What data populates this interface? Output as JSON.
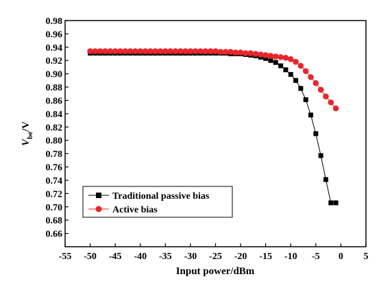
{
  "chart_data": {
    "type": "line",
    "xlabel": "Input power/dBm",
    "ylabel_main": "V",
    "ylabel_sub": "be",
    "ylabel_suffix": "/V",
    "xlim": [
      -55,
      5
    ],
    "ylim": [
      0.64,
      0.98
    ],
    "xticks": [
      -55,
      -50,
      -45,
      -40,
      -35,
      -30,
      -25,
      -20,
      -15,
      -10,
      -5,
      0,
      5
    ],
    "yticks": [
      0.66,
      0.68,
      0.7,
      0.72,
      0.74,
      0.76,
      0.78,
      0.8,
      0.82,
      0.84,
      0.86,
      0.88,
      0.9,
      0.92,
      0.94,
      0.96,
      0.98
    ],
    "legend_position": "bottom-left",
    "grid": false,
    "series": [
      {
        "name": "Traditional passive bias",
        "color": "#000000",
        "marker": "square",
        "x": [
          -50,
          -49,
          -48,
          -47,
          -46,
          -45,
          -44,
          -43,
          -42,
          -41,
          -40,
          -39,
          -38,
          -37,
          -36,
          -35,
          -34,
          -33,
          -32,
          -31,
          -30,
          -29,
          -28,
          -27,
          -26,
          -25,
          -24,
          -23,
          -22,
          -21,
          -20,
          -19,
          -18,
          -17,
          -16,
          -15,
          -14,
          -13,
          -12,
          -11,
          -10,
          -9,
          -8,
          -7,
          -6,
          -5,
          -4,
          -3,
          -2,
          -1
        ],
        "y": [
          0.931,
          0.931,
          0.931,
          0.931,
          0.931,
          0.931,
          0.931,
          0.931,
          0.931,
          0.931,
          0.931,
          0.931,
          0.931,
          0.931,
          0.931,
          0.931,
          0.931,
          0.931,
          0.931,
          0.931,
          0.931,
          0.931,
          0.931,
          0.931,
          0.931,
          0.931,
          0.931,
          0.931,
          0.93,
          0.93,
          0.93,
          0.929,
          0.928,
          0.927,
          0.925,
          0.923,
          0.92,
          0.917,
          0.912,
          0.906,
          0.899,
          0.89,
          0.878,
          0.861,
          0.838,
          0.81,
          0.777,
          0.741,
          0.706,
          0.706
        ]
      },
      {
        "name": "Active bias",
        "color": "#e8262b",
        "marker": "circle",
        "x": [
          -50,
          -49,
          -48,
          -47,
          -46,
          -45,
          -44,
          -43,
          -42,
          -41,
          -40,
          -39,
          -38,
          -37,
          -36,
          -35,
          -34,
          -33,
          -32,
          -31,
          -30,
          -29,
          -28,
          -27,
          -26,
          -25,
          -24,
          -23,
          -22,
          -21,
          -20,
          -19,
          -18,
          -17,
          -16,
          -15,
          -14,
          -13,
          -12,
          -11,
          -10,
          -9,
          -8,
          -7,
          -6,
          -5,
          -4,
          -3,
          -2,
          -1
        ],
        "y": [
          0.934,
          0.934,
          0.934,
          0.934,
          0.934,
          0.934,
          0.934,
          0.934,
          0.934,
          0.934,
          0.934,
          0.934,
          0.934,
          0.934,
          0.934,
          0.934,
          0.934,
          0.934,
          0.934,
          0.934,
          0.934,
          0.934,
          0.934,
          0.934,
          0.934,
          0.934,
          0.933,
          0.933,
          0.933,
          0.932,
          0.932,
          0.931,
          0.931,
          0.93,
          0.929,
          0.928,
          0.927,
          0.926,
          0.925,
          0.924,
          0.922,
          0.918,
          0.912,
          0.904,
          0.895,
          0.886,
          0.876,
          0.866,
          0.857,
          0.848
        ]
      }
    ]
  }
}
